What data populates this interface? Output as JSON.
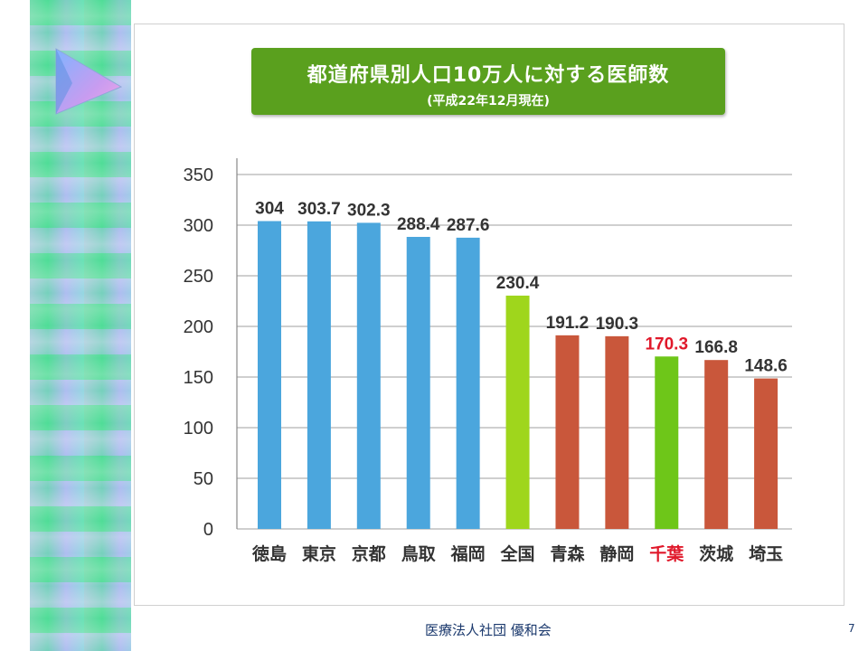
{
  "chart_data": {
    "type": "bar",
    "title": "都道府県別人口10万人に対する医師数",
    "subtitle": "(平成22年12月現在)",
    "categories": [
      "徳島",
      "東京",
      "京都",
      "鳥取",
      "福岡",
      "全国",
      "青森",
      "静岡",
      "千葉",
      "茨城",
      "埼玉"
    ],
    "values": [
      304,
      303.7,
      302.3,
      288.4,
      287.6,
      230.4,
      191.2,
      190.3,
      170.3,
      166.8,
      148.6
    ],
    "value_labels": [
      "304",
      "303.7",
      "302.3",
      "288.4",
      "287.6",
      "230.4",
      "191.2",
      "190.3",
      "170.3",
      "166.8",
      "148.6"
    ],
    "bar_colors": [
      "#4ba6dd",
      "#4ba6dd",
      "#4ba6dd",
      "#4ba6dd",
      "#4ba6dd",
      "#9fd61c",
      "#c9573b",
      "#c9573b",
      "#6ec619",
      "#c9573b",
      "#c9573b"
    ],
    "highlight_category": "千葉",
    "highlight_label_color": "#e0182a",
    "ylim": [
      0,
      350
    ],
    "yticks": [
      0,
      50,
      100,
      150,
      200,
      250,
      300,
      350
    ],
    "grid": true,
    "xlabel": "",
    "ylabel": ""
  },
  "colors": {
    "title_bg": "#5aa01e",
    "grid": "#bfbfbf",
    "text": "#333333"
  },
  "footer": {
    "organization": "医療法人社団 優和会",
    "page_number": "7"
  }
}
